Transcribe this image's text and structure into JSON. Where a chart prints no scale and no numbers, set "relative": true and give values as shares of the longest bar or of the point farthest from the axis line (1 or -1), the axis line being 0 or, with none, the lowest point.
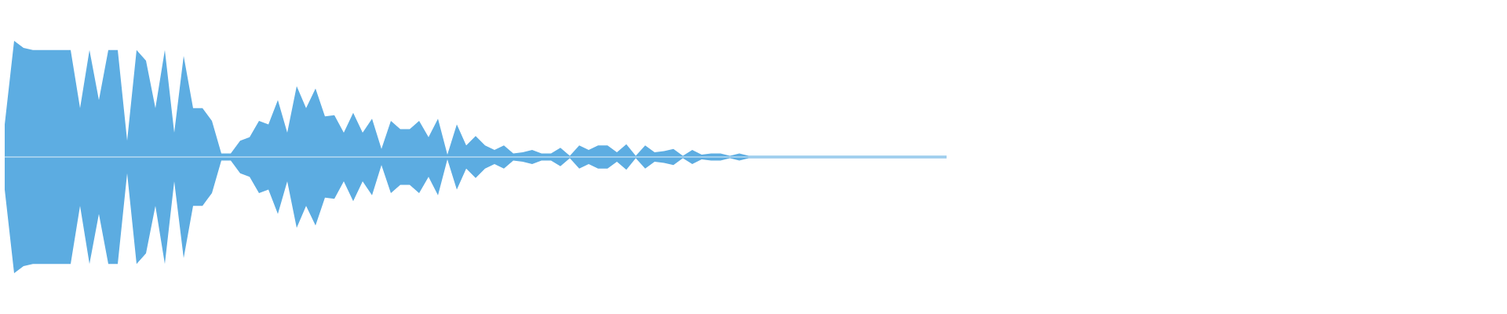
{
  "chart_data": {
    "type": "area",
    "relative": true,
    "categories": [
      null,
      null,
      null,
      null,
      null,
      null,
      null,
      null,
      null,
      null,
      null,
      null,
      null,
      null,
      null,
      null,
      null,
      null,
      null,
      null,
      null,
      null,
      null,
      null,
      null,
      null,
      null,
      null,
      null,
      null,
      null,
      null,
      null,
      null,
      null,
      null,
      null,
      null,
      null,
      null,
      null,
      null,
      null,
      null,
      null,
      null,
      null,
      null,
      null,
      null,
      null,
      null,
      null,
      null,
      null,
      null,
      null,
      null,
      null,
      null,
      null,
      null,
      null,
      null,
      null,
      null,
      null,
      null,
      null,
      null,
      null,
      null,
      null,
      null,
      null,
      null,
      null,
      null,
      null,
      null,
      null,
      null,
      null,
      null,
      null,
      null,
      null,
      null,
      null,
      null,
      null,
      null,
      null,
      null,
      null,
      null,
      null,
      null,
      null,
      null,
      null,
      null,
      null,
      null,
      null,
      null,
      null,
      null,
      null,
      null,
      null,
      null,
      null,
      null,
      null,
      null,
      null,
      null,
      null,
      null,
      null,
      null,
      null,
      null,
      null,
      null,
      null,
      null,
      null,
      null,
      null,
      null,
      null,
      null,
      null,
      null,
      null,
      null,
      null,
      null,
      null,
      null,
      null,
      null,
      null,
      null,
      null,
      null,
      null,
      null,
      null,
      null,
      null,
      null,
      null,
      null,
      null,
      null,
      null,
      null
    ],
    "series": [
      {
        "color": "#5dade2",
        "values": [
          0.28,
          1,
          0.94,
          0.92,
          0.92,
          0.92,
          0.92,
          0.92,
          0.42,
          0.92,
          0.49,
          0.92,
          0.92,
          0.14,
          0.92,
          0.83,
          0.42,
          0.92,
          0.21,
          0.87,
          0.42,
          0.42,
          0.31,
          0.03,
          0.03,
          0.14,
          0.17,
          0.31,
          0.28,
          0.49,
          0.21,
          0.61,
          0.42,
          0.59,
          0.35,
          0.36,
          0.21,
          0.38,
          0.21,
          0.33,
          0.07,
          0.31,
          0.24,
          0.24,
          0.31,
          0.17,
          0.33,
          0.02,
          0.28,
          0.1,
          0.18,
          0.1,
          0.06,
          0.1,
          0.03,
          0.04,
          0.06,
          0.03,
          0.03,
          0.08,
          0.01,
          0.1,
          0.06,
          0.1,
          0.1,
          0.04,
          0.11,
          0.01,
          0.1,
          0.04,
          0.05,
          0.07,
          0.01,
          0.06,
          0.02,
          0.03,
          0.03,
          0.01,
          0.03,
          0.01,
          0.01,
          0.01,
          0.01,
          0.01,
          0.01,
          0.01,
          0.01,
          0.01,
          0.01,
          0.01,
          0.01,
          0.01,
          0.01,
          0.01,
          0.01,
          0.01,
          0.01,
          0.01,
          0.01,
          0.01,
          0.01,
          null,
          null,
          null,
          null,
          null,
          null,
          null,
          null,
          null,
          null,
          null,
          null,
          null,
          null,
          null,
          null,
          null,
          null,
          null,
          null,
          null,
          null,
          null,
          null,
          null,
          null,
          null,
          null,
          null,
          null,
          null,
          null,
          null,
          null,
          null,
          null,
          null,
          null,
          null,
          null,
          null,
          null,
          null,
          null,
          null,
          null,
          null,
          null,
          null,
          null,
          null,
          null,
          null,
          null,
          null,
          null,
          null,
          null,
          null
        ]
      },
      {
        "color": "#5cace1",
        "values": [
          -0.28,
          -1,
          -0.94,
          -0.92,
          -0.92,
          -0.92,
          -0.92,
          -0.92,
          -0.42,
          -0.92,
          -0.49,
          -0.92,
          -0.92,
          -0.14,
          -0.92,
          -0.83,
          -0.42,
          -0.92,
          -0.21,
          -0.87,
          -0.42,
          -0.42,
          -0.31,
          -0.03,
          -0.03,
          -0.14,
          -0.17,
          -0.31,
          -0.28,
          -0.49,
          -0.21,
          -0.61,
          -0.42,
          -0.59,
          -0.35,
          -0.36,
          -0.21,
          -0.38,
          -0.21,
          -0.33,
          -0.07,
          -0.31,
          -0.24,
          -0.24,
          -0.31,
          -0.17,
          -0.33,
          -0.02,
          -0.28,
          -0.1,
          -0.18,
          -0.1,
          -0.06,
          -0.1,
          -0.03,
          -0.04,
          -0.06,
          -0.03,
          -0.03,
          -0.08,
          -0.01,
          -0.1,
          -0.06,
          -0.1,
          -0.1,
          -0.04,
          -0.11,
          -0.01,
          -0.1,
          -0.04,
          -0.05,
          -0.07,
          -0.01,
          -0.06,
          -0.02,
          -0.03,
          -0.03,
          -0.01,
          -0.03,
          -0.01,
          -0.01,
          -0.01,
          -0.01,
          -0.01,
          -0.01,
          -0.01,
          -0.01,
          -0.01,
          -0.01,
          -0.01,
          -0.01,
          -0.01,
          -0.01,
          -0.01,
          -0.01,
          -0.01,
          -0.01,
          -0.01,
          -0.01,
          -0.01,
          -0.01,
          null,
          null,
          null,
          null,
          null,
          null,
          null,
          null,
          null,
          null,
          null,
          null,
          null,
          null,
          null,
          null,
          null,
          null,
          null,
          null,
          null,
          null,
          null,
          null,
          null,
          null,
          null,
          null,
          null,
          null,
          null,
          null,
          null,
          null,
          null,
          null,
          null,
          null,
          null,
          null,
          null,
          null,
          null,
          null,
          null,
          null,
          null,
          null,
          null,
          null,
          null,
          null,
          null,
          null,
          null,
          null,
          null,
          null,
          null
        ]
      }
    ]
  }
}
